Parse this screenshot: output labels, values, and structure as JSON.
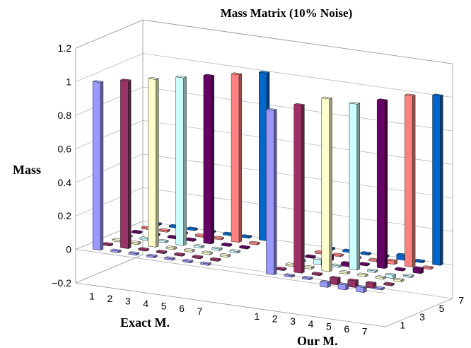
{
  "chart_data": {
    "type": "bar3d",
    "title": "Mass Matrix (10% Noise)",
    "zlabel": "Mass",
    "zlim": [
      -0.2,
      1.2
    ],
    "zticks": [
      "-0.2",
      "0",
      "0.2",
      "0.4",
      "0.6",
      "0.8",
      "1",
      "1.2"
    ],
    "grid": true,
    "groups": [
      {
        "name": "Exact M.",
        "column_ticks": [
          "1",
          "2",
          "3",
          "4",
          "5",
          "6",
          "7"
        ],
        "values": [
          [
            1.0,
            0.01,
            0.01,
            0.01,
            0.01,
            0.01,
            0.01
          ],
          [
            0.01,
            1.0,
            0.01,
            0.01,
            0.01,
            0.01,
            0.01
          ],
          [
            0.01,
            0.01,
            1.0,
            0.01,
            0.01,
            0.01,
            0.01
          ],
          [
            0.01,
            0.01,
            0.01,
            1.0,
            0.01,
            0.01,
            0.01
          ],
          [
            0.01,
            0.01,
            0.01,
            0.01,
            1.0,
            0.01,
            0.01
          ],
          [
            0.01,
            0.01,
            0.01,
            0.01,
            0.01,
            1.0,
            0.01
          ],
          [
            0.01,
            0.01,
            0.01,
            0.01,
            0.01,
            0.01,
            1.0
          ]
        ]
      },
      {
        "name": "Our M.",
        "column_ticks": [
          "1",
          "2",
          "3",
          "4",
          "5",
          "6",
          "7"
        ],
        "values": [
          [
            0.98,
            0.01,
            0.01,
            -0.03,
            -0.03,
            -0.03,
            0.01
          ],
          [
            0.01,
            1.0,
            0.01,
            -0.04,
            -0.04,
            -0.03,
            0.01
          ],
          [
            0.01,
            0.01,
            1.03,
            0.01,
            0.01,
            0.01,
            0.01
          ],
          [
            0.01,
            0.03,
            0.01,
            0.99,
            0.01,
            -0.02,
            0.01
          ],
          [
            0.01,
            0.03,
            -0.02,
            0.01,
            1.0,
            0.01,
            0.03
          ],
          [
            0.01,
            0.01,
            0.01,
            0.01,
            0.02,
            1.02,
            0.01
          ],
          [
            0.01,
            0.01,
            0.01,
            0.01,
            0.03,
            0.01,
            1.01
          ]
        ]
      }
    ],
    "row_ticks": [
      "1",
      "3",
      "5",
      "7"
    ],
    "row_colors": [
      "#9999ff",
      "#993366",
      "#ffffcc",
      "#ccffff",
      "#660066",
      "#ff8080",
      "#0066cc"
    ]
  }
}
